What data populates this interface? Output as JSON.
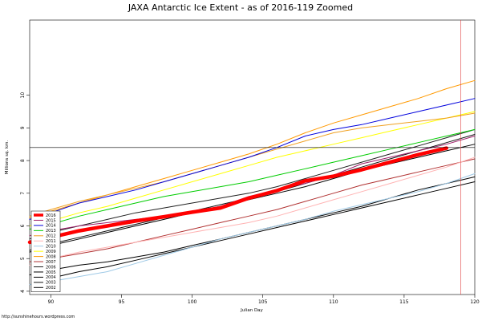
{
  "chart_data": {
    "type": "line",
    "title": "JAXA Antarctic Ice Extent - as of 2016-119 Zoomed",
    "xlabel": "Julian Day",
    "ylabel": "Millions sq. km.",
    "xlim": [
      88.5,
      120
    ],
    "ylim": [
      3.9,
      12.3
    ],
    "x_ticks": [
      90,
      95,
      100,
      105,
      110,
      115,
      120
    ],
    "y_ticks": [
      4,
      5,
      6,
      7,
      8,
      9,
      10
    ],
    "y_tick_labels": [
      "4",
      "5",
      "6",
      "7",
      "8",
      "9",
      "10"
    ],
    "reference_hline": 8.4,
    "reference_vline": 119,
    "legend_position": "bottom-left",
    "credit": "http://sunshinehours.wordpress.com",
    "x": [
      88.5,
      90,
      92,
      94,
      96,
      98,
      100,
      102,
      104,
      106,
      108,
      110,
      112,
      114,
      116,
      118,
      120
    ],
    "series": [
      {
        "name": "2016",
        "color": "#ff0000",
        "width": 4.5,
        "values": [
          5.5,
          5.65,
          5.85,
          6.0,
          6.15,
          6.28,
          6.42,
          6.55,
          6.85,
          7.08,
          7.38,
          7.52,
          7.72,
          7.95,
          8.18,
          8.38,
          null
        ]
      },
      {
        "name": "2015",
        "color": "#a0206b",
        "width": 1,
        "values": [
          5.7,
          5.85,
          6.0,
          6.1,
          6.2,
          6.3,
          6.45,
          6.6,
          6.9,
          7.1,
          7.3,
          7.55,
          7.9,
          8.1,
          8.3,
          8.5,
          8.75
        ]
      },
      {
        "name": "2014",
        "color": "#0000dd",
        "width": 1,
        "values": [
          6.2,
          6.4,
          6.7,
          6.9,
          7.1,
          7.35,
          7.6,
          7.85,
          8.1,
          8.4,
          8.75,
          8.95,
          9.1,
          9.3,
          9.5,
          9.7,
          9.9
        ]
      },
      {
        "name": "2013",
        "color": "#00cc00",
        "width": 1,
        "values": [
          5.9,
          6.05,
          6.3,
          6.5,
          6.7,
          6.9,
          7.05,
          7.2,
          7.35,
          7.55,
          7.75,
          7.95,
          8.15,
          8.35,
          8.55,
          8.75,
          8.95
        ]
      },
      {
        "name": "2012",
        "color": "#f0a020",
        "width": 1,
        "values": [
          6.3,
          6.5,
          6.75,
          6.95,
          7.15,
          7.35,
          7.6,
          7.85,
          8.1,
          8.35,
          8.6,
          8.85,
          9.0,
          9.1,
          9.2,
          9.3,
          9.45
        ]
      },
      {
        "name": "2011",
        "color": "#ffb3b3",
        "width": 1,
        "values": [
          4.8,
          5.0,
          5.2,
          5.35,
          5.5,
          5.65,
          5.8,
          5.95,
          6.1,
          6.3,
          6.55,
          6.8,
          7.05,
          7.3,
          7.55,
          7.8,
          8.1
        ]
      },
      {
        "name": "2010",
        "color": "#9ec9e6",
        "width": 1,
        "values": [
          4.2,
          4.3,
          4.45,
          4.6,
          4.85,
          5.1,
          5.35,
          5.6,
          5.8,
          6.0,
          6.2,
          6.45,
          6.65,
          6.85,
          7.05,
          7.3,
          7.6
        ]
      },
      {
        "name": "2009",
        "color": "#ffff00",
        "width": 1,
        "values": [
          6.0,
          6.15,
          6.4,
          6.6,
          6.85,
          7.1,
          7.35,
          7.6,
          7.85,
          8.1,
          8.3,
          8.5,
          8.7,
          8.9,
          9.1,
          9.3,
          9.5
        ]
      },
      {
        "name": "2008",
        "color": "#ff9900",
        "width": 1,
        "values": [
          6.25,
          6.45,
          6.7,
          6.95,
          7.2,
          7.45,
          7.7,
          7.95,
          8.2,
          8.5,
          8.85,
          9.15,
          9.4,
          9.65,
          9.9,
          10.2,
          10.45
        ]
      },
      {
        "name": "2007",
        "color": "#b03030",
        "width": 1,
        "values": [
          4.9,
          5.0,
          5.15,
          5.3,
          5.5,
          5.7,
          5.9,
          6.1,
          6.3,
          6.5,
          6.75,
          7.0,
          7.25,
          7.45,
          7.65,
          7.85,
          8.05
        ]
      },
      {
        "name": "2006",
        "color": "#202020",
        "width": 1,
        "values": [
          5.6,
          5.8,
          6.0,
          6.2,
          6.4,
          6.55,
          6.7,
          6.85,
          7.0,
          7.2,
          7.45,
          7.7,
          7.95,
          8.2,
          8.45,
          8.7,
          8.95
        ]
      },
      {
        "name": "2005",
        "color": "#000000",
        "width": 1,
        "values": [
          5.2,
          5.4,
          5.6,
          5.8,
          6.0,
          6.2,
          6.4,
          6.6,
          6.8,
          7.0,
          7.2,
          7.45,
          7.7,
          7.9,
          8.1,
          8.3,
          8.5
        ]
      },
      {
        "name": "2004",
        "color": "#000000",
        "width": 1,
        "values": [
          4.5,
          4.65,
          4.8,
          4.9,
          5.05,
          5.2,
          5.4,
          5.6,
          5.8,
          6.0,
          6.2,
          6.4,
          6.6,
          6.85,
          7.1,
          7.3,
          7.5
        ]
      },
      {
        "name": "2003",
        "color": "#111111",
        "width": 1,
        "values": [
          5.25,
          5.45,
          5.65,
          5.85,
          6.05,
          6.25,
          6.45,
          6.65,
          6.85,
          7.05,
          7.3,
          7.55,
          7.8,
          8.05,
          8.3,
          8.55,
          8.8
        ]
      },
      {
        "name": "2002",
        "color": "#000000",
        "width": 1,
        "values": [
          4.2,
          4.4,
          4.6,
          4.75,
          4.95,
          5.15,
          5.35,
          5.55,
          5.75,
          5.95,
          6.15,
          6.35,
          6.55,
          6.75,
          6.95,
          7.15,
          7.35
        ]
      }
    ]
  }
}
